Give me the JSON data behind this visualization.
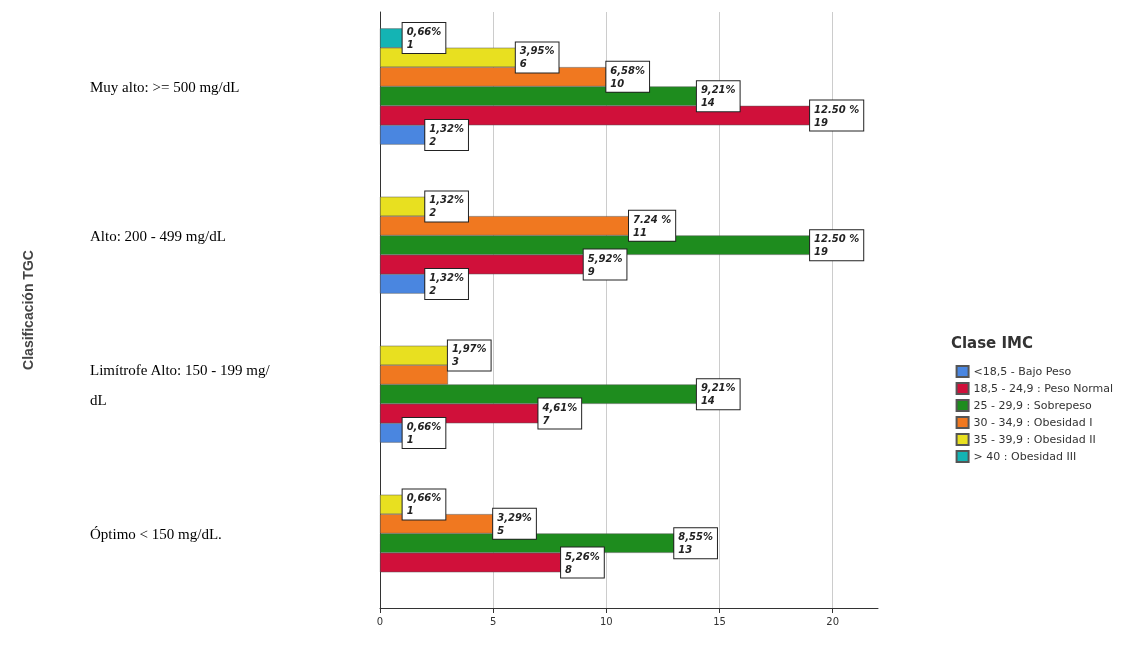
{
  "chart_data": {
    "type": "bar",
    "orientation": "horizontal",
    "ylabel": "Clasificación TGC",
    "legend_title": "Clase IMC",
    "legend": "right",
    "grid": "x",
    "categories": [
      "Muy alto: >= 500 mg/dL",
      "Alto: 200 - 499 mg/dL",
      "Limítrofe Alto: 150 - 199 mg/dL",
      "Óptimo < 150 mg/dL."
    ],
    "xlim": [
      0,
      22
    ],
    "xticks": [
      0,
      5,
      10,
      15,
      20
    ],
    "series": [
      {
        "name": "<18,5 - Bajo Peso",
        "color": "#4a86e0",
        "values": [
          2,
          2,
          1,
          null
        ],
        "value_labels": [
          "1,32%\n2",
          "1,32%\n2",
          "0,66%\n1",
          null
        ]
      },
      {
        "name": "18,5 - 24,9 : Peso Normal",
        "color": "#d0103a",
        "values": [
          19,
          9,
          7,
          8
        ],
        "value_labels": [
          "12.50 %\n19",
          "5,92%\n9",
          "4,61%\n7",
          "5,26%\n8"
        ]
      },
      {
        "name": "25 - 29,9 : Sobrepeso",
        "color": "#1e8c1e",
        "values": [
          14,
          19,
          14,
          13
        ],
        "value_labels": [
          "9,21%\n14",
          "12.50 %\n19",
          "9,21%\n14",
          "8,55%\n13"
        ]
      },
      {
        "name": "30 - 34,9 : Obesidad I",
        "color": "#f07820",
        "values": [
          10,
          11,
          3,
          5
        ],
        "value_labels": [
          "6,58%\n10",
          "7.24 %\n11",
          null,
          "3,29%\n5"
        ]
      },
      {
        "name": "35 - 39,9 : Obesidad II",
        "color": "#e8e020",
        "values": [
          6,
          2,
          3,
          1
        ],
        "value_labels": [
          "3,95%\n6",
          "1,32%\n2",
          "1,97%\n3",
          "0,66%\n1"
        ]
      },
      {
        "name": "> 40 : Obesidad III",
        "color": "#14b4b4",
        "values": [
          1,
          null,
          null,
          null
        ],
        "value_labels": [
          "0,66%\n1",
          null,
          null,
          null
        ]
      }
    ]
  }
}
